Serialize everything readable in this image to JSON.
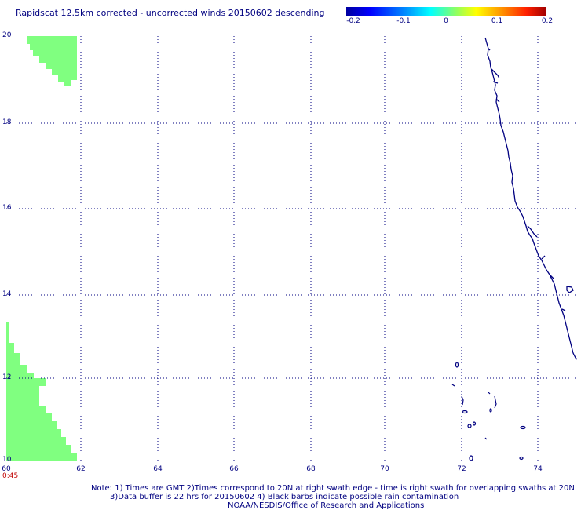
{
  "header": {
    "title": "Rapidscat 12.5km corrected - uncorrected winds 20150602 descending"
  },
  "colorbar": {
    "ticks": [
      "-0.2",
      "-0.1",
      "0",
      "0.1",
      "0.2"
    ],
    "colors": [
      "#0000a0",
      "#0000ff",
      "#0090ff",
      "#00ffff",
      "#90ff60",
      "#ffff00",
      "#ff9000",
      "#ff2000",
      "#a00000"
    ]
  },
  "map": {
    "lat_labels": [
      "20",
      "18",
      "16",
      "14",
      "12",
      "10"
    ],
    "lon_labels": [
      "60",
      "62",
      "64",
      "66",
      "68",
      "70",
      "72",
      "74"
    ],
    "time_label": "0:45",
    "swath_color": "#80ff80",
    "coast_color": "#000080",
    "grid": "dotted"
  },
  "footer": {
    "note_line1": "Note: 1) Times are GMT 2)Times correspond to 20N at right swath edge - time is right swath for overlapping swaths at 20N",
    "note_line2": "3)Data buffer is 22 hrs for 20150602 4) Black barbs indicate possible rain contamination",
    "note_line3": "NOAA/NESDIS/Office of Research and Applications"
  }
}
